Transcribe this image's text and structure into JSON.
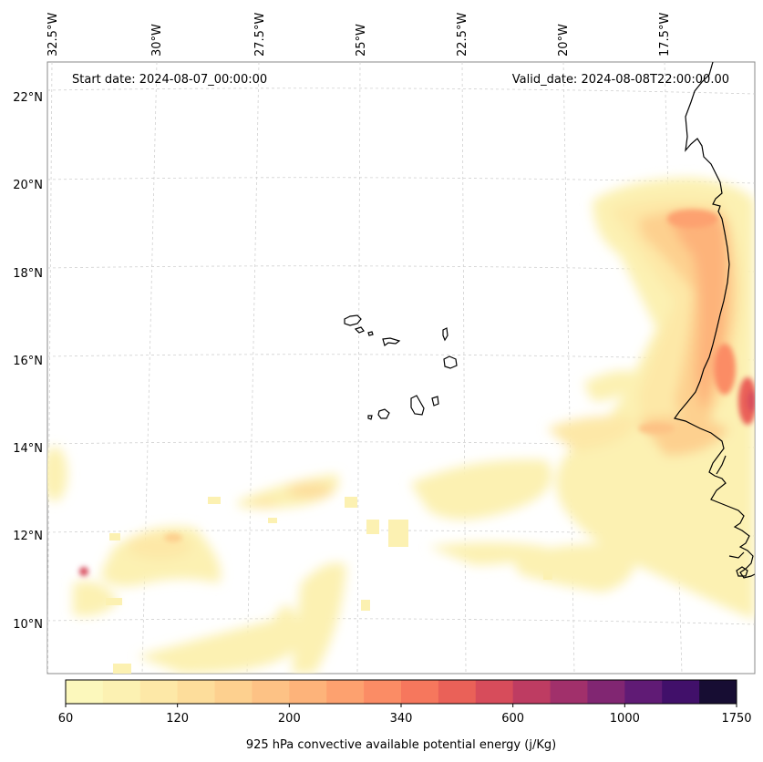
{
  "map": {
    "start_date": "Start date: 2024-08-07_00:00:00",
    "valid_date": "Valid_date: 2024-08-08T22:00:00.00",
    "lon_labels": [
      "32.5°W",
      "30°W",
      "27.5°W",
      "25°W",
      "22.5°W",
      "20°W",
      "17.5°W"
    ],
    "lat_labels": [
      "22°N",
      "20°N",
      "18°N",
      "16°N",
      "14°N",
      "12°N",
      "10°N"
    ]
  },
  "colorbar": {
    "ticks": [
      "60",
      "120",
      "200",
      "340",
      "600",
      "1000",
      "1750"
    ],
    "title": "925 hPa convective available potential energy (j/Kg)",
    "colors": [
      "#fcf8bc",
      "#fcf1b2",
      "#fde8a7",
      "#fddd9b",
      "#fdd08f",
      "#fdc285",
      "#fdb37a",
      "#fda16f",
      "#fb8c65",
      "#f6775d",
      "#ea6158",
      "#d74c5b",
      "#be3c62",
      "#a1306b",
      "#812672",
      "#601b75",
      "#41106a",
      "#170d33"
    ]
  },
  "colors": {
    "coastline": "#000000",
    "grid": "#cccccc"
  }
}
